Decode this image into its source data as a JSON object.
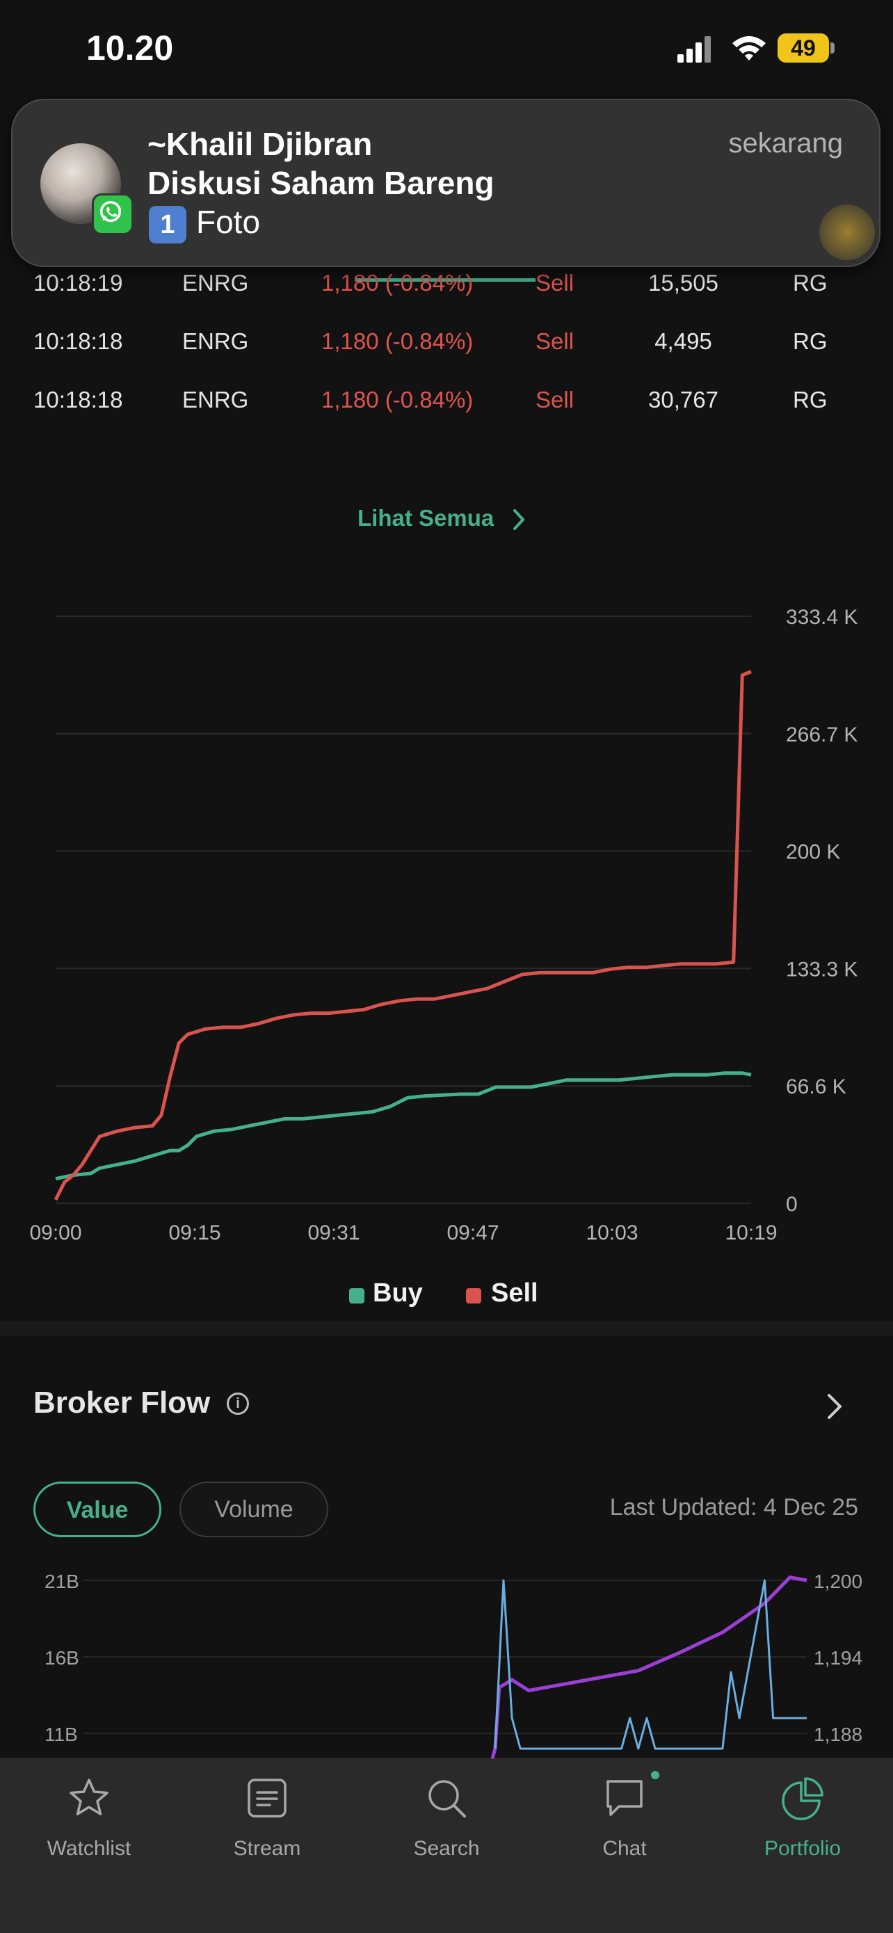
{
  "status_bar": {
    "time": "10.20",
    "battery": "49"
  },
  "notification": {
    "sender": "~Khalil Djibran",
    "group": "Diskusi Saham Bareng",
    "message_icon": "1",
    "message": "Foto",
    "time": "sekarang",
    "icon": "whatsapp-icon"
  },
  "trades": [
    {
      "time": "10:18:19",
      "stock": "ENRG",
      "price": "1,180 (-0.84%)",
      "action": "Sell",
      "volume": "15,505",
      "board": "RG"
    },
    {
      "time": "10:18:18",
      "stock": "ENRG",
      "price": "1,180 (-0.84%)",
      "action": "Sell",
      "volume": "4,495",
      "board": "RG"
    },
    {
      "time": "10:18:18",
      "stock": "ENRG",
      "price": "1,180 (-0.84%)",
      "action": "Sell",
      "volume": "30,767",
      "board": "RG"
    }
  ],
  "see_all": "Lihat Semua",
  "trade_chart": {
    "chart_data": {
      "type": "line",
      "x_ticks": [
        "09:00",
        "09:15",
        "09:31",
        "09:47",
        "10:03",
        "10:19"
      ],
      "y_ticks": [
        "333.4 K",
        "266.7 K",
        "200 K",
        "133.3 K",
        "66.6 K",
        "0"
      ],
      "ylim": [
        0,
        333.4
      ],
      "x_minutes": [
        0,
        79
      ],
      "grid": true,
      "legend_position": "bottom-center",
      "series": [
        {
          "name": "Buy",
          "color": "#46b08d",
          "points": [
            [
              0,
              14
            ],
            [
              2,
              16
            ],
            [
              4,
              17
            ],
            [
              5,
              20
            ],
            [
              7,
              22
            ],
            [
              9,
              24
            ],
            [
              11,
              27
            ],
            [
              13,
              30
            ],
            [
              14,
              30
            ],
            [
              15,
              33
            ],
            [
              16,
              38
            ],
            [
              18,
              41
            ],
            [
              20,
              42
            ],
            [
              22,
              44
            ],
            [
              24,
              46
            ],
            [
              26,
              48
            ],
            [
              28,
              48
            ],
            [
              30,
              49
            ],
            [
              32,
              50
            ],
            [
              34,
              51
            ],
            [
              36,
              52
            ],
            [
              38,
              55
            ],
            [
              40,
              60
            ],
            [
              42,
              61
            ],
            [
              46,
              62
            ],
            [
              48,
              62
            ],
            [
              50,
              66
            ],
            [
              52,
              66
            ],
            [
              54,
              66
            ],
            [
              56,
              68
            ],
            [
              58,
              70
            ],
            [
              60,
              70
            ],
            [
              62,
              70
            ],
            [
              64,
              70
            ],
            [
              66,
              71
            ],
            [
              68,
              72
            ],
            [
              70,
              73
            ],
            [
              72,
              73
            ],
            [
              74,
              73
            ],
            [
              76,
              74
            ],
            [
              78,
              74
            ],
            [
              79,
              73
            ]
          ]
        },
        {
          "name": "Sell",
          "color": "#d9534f",
          "points": [
            [
              0,
              2
            ],
            [
              1,
              12
            ],
            [
              2,
              16
            ],
            [
              3,
              22
            ],
            [
              4,
              30
            ],
            [
              5,
              38
            ],
            [
              7,
              41
            ],
            [
              9,
              43
            ],
            [
              11,
              44
            ],
            [
              12,
              50
            ],
            [
              13,
              72
            ],
            [
              14,
              91
            ],
            [
              15,
              96
            ],
            [
              17,
              99
            ],
            [
              19,
              100
            ],
            [
              21,
              100
            ],
            [
              23,
              102
            ],
            [
              25,
              105
            ],
            [
              27,
              107
            ],
            [
              29,
              108
            ],
            [
              31,
              108
            ],
            [
              33,
              109
            ],
            [
              35,
              110
            ],
            [
              37,
              113
            ],
            [
              39,
              115
            ],
            [
              41,
              116
            ],
            [
              43,
              116
            ],
            [
              45,
              118
            ],
            [
              47,
              120
            ],
            [
              49,
              122
            ],
            [
              51,
              126
            ],
            [
              53,
              130
            ],
            [
              55,
              131
            ],
            [
              57,
              131
            ],
            [
              59,
              131
            ],
            [
              61,
              131
            ],
            [
              63,
              133
            ],
            [
              65,
              134
            ],
            [
              67,
              134
            ],
            [
              69,
              135
            ],
            [
              71,
              136
            ],
            [
              73,
              136
            ],
            [
              75,
              136
            ],
            [
              77,
              137
            ],
            [
              78,
              300
            ],
            [
              79,
              302
            ]
          ]
        }
      ]
    },
    "legend": [
      "Buy",
      "Sell"
    ]
  },
  "broker_flow": {
    "title": "Broker Flow",
    "tabs": [
      "Value",
      "Volume"
    ],
    "active_tab": "Value",
    "last_updated": "Last Updated: 4 Dec 25",
    "chart_data": {
      "type": "line",
      "y_left_ticks": [
        "21B",
        "16B",
        "11B"
      ],
      "y_right_ticks": [
        "1,200",
        "1,194",
        "1,188"
      ],
      "series": [
        {
          "name": "",
          "color": "#9b3fd6",
          "points": [
            [
              0.45,
              5.4
            ],
            [
              0.5,
              6.5
            ],
            [
              0.52,
              8
            ],
            [
              0.53,
              10
            ],
            [
              0.535,
              14.0
            ],
            [
              0.55,
              14.5
            ],
            [
              0.57,
              13.8
            ],
            [
              0.62,
              14.3
            ],
            [
              0.7,
              15.1
            ],
            [
              0.75,
              16.3
            ],
            [
              0.8,
              17.6
            ],
            [
              0.85,
              19.5
            ],
            [
              0.88,
              21.2
            ],
            [
              0.9,
              21.0
            ]
          ]
        },
        {
          "name": "",
          "color": "#6aaee0",
          "points": [
            [
              0.53,
              10
            ],
            [
              0.54,
              21
            ],
            [
              0.55,
              12
            ],
            [
              0.56,
              10
            ],
            [
              0.68,
              10
            ],
            [
              0.69,
              12
            ],
            [
              0.7,
              10
            ],
            [
              0.71,
              12
            ],
            [
              0.72,
              10
            ],
            [
              0.8,
              10
            ],
            [
              0.81,
              15
            ],
            [
              0.82,
              12
            ],
            [
              0.85,
              21
            ],
            [
              0.86,
              12
            ],
            [
              0.9,
              12
            ]
          ]
        }
      ]
    }
  },
  "tabbar": {
    "items": [
      {
        "label": "Watchlist",
        "icon": "star-icon"
      },
      {
        "label": "Stream",
        "icon": "stream-icon"
      },
      {
        "label": "Search",
        "icon": "search-icon"
      },
      {
        "label": "Chat",
        "icon": "chat-icon"
      },
      {
        "label": "Portfolio",
        "icon": "portfolio-icon"
      }
    ],
    "active": "Portfolio"
  }
}
